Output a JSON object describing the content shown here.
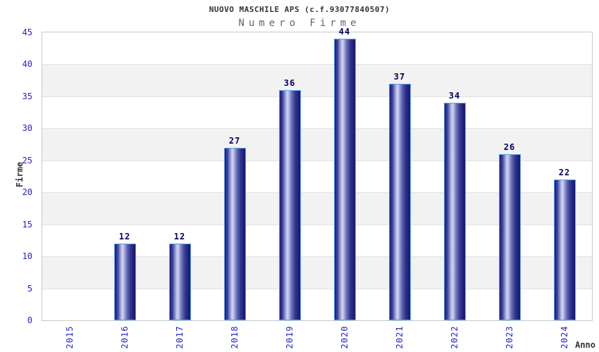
{
  "header": {
    "title": "NUOVO MASCHILE APS (c.f.93077840507)",
    "subtitle": "Numero Firme"
  },
  "chart_data": {
    "type": "bar",
    "title": "NUOVO MASCHILE APS (c.f.93077840507)",
    "subtitle": "Numero Firme",
    "categories": [
      "2015",
      "2016",
      "2017",
      "2018",
      "2019",
      "2020",
      "2021",
      "2022",
      "2023",
      "2024"
    ],
    "values": [
      0,
      12,
      12,
      27,
      36,
      44,
      37,
      34,
      26,
      22
    ],
    "xlabel": "Anno",
    "ylabel": "Firme",
    "ylim": [
      0,
      45
    ],
    "ytick_step": 5,
    "yticks": [
      0,
      5,
      10,
      15,
      20,
      25,
      30,
      35,
      40,
      45
    ],
    "grid": "alternating horizontal bands every 5 units",
    "legend_position": "none",
    "bars_show_value_labels": true,
    "zero_value_bars_hidden": true
  },
  "colors": {
    "background": "#ffffff",
    "title_text": "#333333",
    "subtitle_text": "#666666",
    "axis_tick_text": "#2222cc",
    "value_label_text": "#000066",
    "axis_title_text": "#333333",
    "bar_border": "#58a0f0",
    "bar_dark": "#1a1a78",
    "bar_mid": "#6a70b8",
    "bar_light": "#d2d6ef",
    "band_gray": "#f2f2f2",
    "band_white": "#ffffff",
    "grid_line": "#e2e2e2",
    "plot_border": "#c9c9c9"
  }
}
